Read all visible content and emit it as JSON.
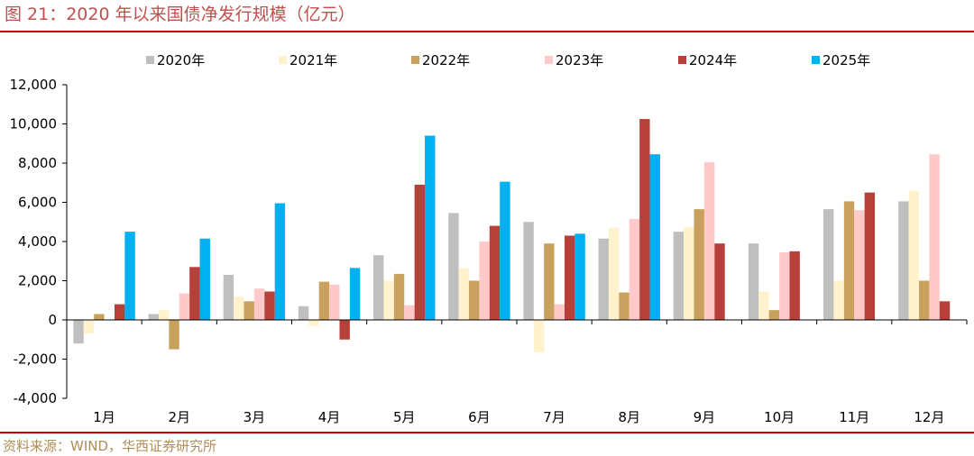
{
  "figure": {
    "title": "图 21：2020 年以来国债净发行规模（亿元）",
    "source": "资料来源：WIND，华西证券研究所"
  },
  "chart_data": {
    "type": "bar",
    "title": "2020 年以来国债净发行规模（亿元）",
    "xlabel": "",
    "ylabel": "",
    "ylim": [
      -4000,
      12000
    ],
    "yticks": [
      12000,
      10000,
      8000,
      6000,
      4000,
      2000,
      0,
      -2000,
      -4000
    ],
    "ytick_labels": [
      "12,000",
      "10,000",
      "8,000",
      "6,000",
      "4,000",
      "2,000",
      "0",
      "-2,000",
      "-4,000"
    ],
    "grid": false,
    "legend": "top",
    "categories": [
      "1月",
      "2月",
      "3月",
      "4月",
      "5月",
      "6月",
      "7月",
      "8月",
      "9月",
      "10月",
      "11月",
      "12月"
    ],
    "series": [
      {
        "name": "2020年",
        "color": "#BFBFBF",
        "values": [
          -1200,
          300,
          2300,
          700,
          3300,
          5450,
          5000,
          4150,
          4500,
          3900,
          5650,
          6050
        ]
      },
      {
        "name": "2021年",
        "color": "#FFF2CC",
        "values": [
          -700,
          500,
          1200,
          -300,
          2000,
          2650,
          -1650,
          4700,
          4750,
          1450,
          2000,
          6600
        ]
      },
      {
        "name": "2022年",
        "color": "#C9A15E",
        "values": [
          300,
          -1500,
          950,
          1950,
          2350,
          2000,
          3900,
          1400,
          5650,
          500,
          6050,
          2000
        ]
      },
      {
        "name": "2023年",
        "color": "#FFC9C9",
        "values": [
          null,
          1350,
          1600,
          1800,
          750,
          4000,
          800,
          5150,
          8050,
          3450,
          5600,
          8450
        ]
      },
      {
        "name": "2024年",
        "color": "#B8403A",
        "values": [
          800,
          2700,
          1450,
          -1000,
          6900,
          4800,
          4300,
          10250,
          3900,
          3500,
          6500,
          950
        ]
      },
      {
        "name": "2025年",
        "color": "#00B0F0",
        "values": [
          4500,
          4150,
          5950,
          2650,
          9400,
          7050,
          4400,
          8450,
          null,
          null,
          null,
          null
        ]
      }
    ]
  }
}
